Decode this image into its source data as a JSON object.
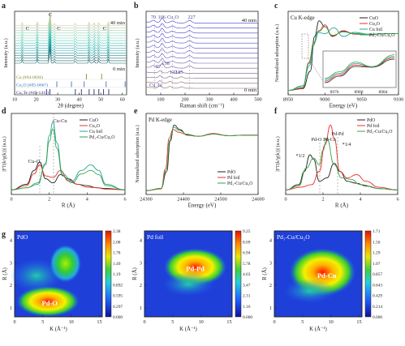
{
  "panel_letters": [
    "a",
    "b",
    "c",
    "d",
    "e",
    "f",
    "g"
  ],
  "colors": {
    "black": "#222222",
    "red": "#e8302c",
    "green": "#3aa34a",
    "teal": "#2aa39a",
    "cu_olive": "#8a8a2a",
    "cu2o_blue": "#3d6fb6",
    "cu2te_navy": "#2a2a7a",
    "purple": "#6a3aa0"
  },
  "chart_data": [
    {
      "panel": "a",
      "type": "line",
      "xlabel": "2θ (degree)",
      "ylabel": "Intensity (a.u.)",
      "xticks": [
        10,
        20,
        30,
        40,
        50,
        60
      ],
      "xlim": [
        10,
        62
      ],
      "annotations": {
        "top_time": "40 min",
        "bottom_time": "0 min",
        "peak_marks": [
          "C",
          "C",
          "C",
          "C"
        ]
      },
      "references": [
        {
          "name": "Cu (#04-0836)",
          "color": "#8a8a2a",
          "peaks": [
            43.3,
            50.4
          ]
        },
        {
          "name": "Cu₂O (#05-0667)",
          "color": "#3d6fb6",
          "peaks": [
            29.6,
            36.4,
            42.3,
            52.5,
            61.3
          ]
        },
        {
          "name": "Cu₂Te (#49-1411)",
          "color": "#2a2a7a",
          "peaks": [
            24.8,
            26.4,
            38.2,
            41.0,
            44.6,
            46.9,
            49.1,
            51.3,
            53.7
          ]
        }
      ],
      "n_series": 16
    },
    {
      "panel": "b",
      "type": "line",
      "xlabel": "Raman shift (cm⁻¹)",
      "ylabel": "Intensity (a.u.)",
      "xticks": [
        100,
        200,
        300,
        400,
        500
      ],
      "xlim": [
        40,
        500
      ],
      "annotations": {
        "top_time": "40 min",
        "bottom_time": "0 min",
        "top_peaks": [
          "70",
          "106",
          "Cu₂O",
          "227"
        ],
        "bottom_peaks": [
          "97",
          "138",
          "147",
          "185"
        ],
        "bottom_label": "Cu₂Te"
      },
      "n_series": 14
    },
    {
      "panel": "c",
      "type": "line",
      "title": "Cu K-edge",
      "xlabel": "Energy (eV)",
      "ylabel": "Normalized adsorption (a.u.)",
      "xticks": [
        8950,
        9000,
        9050,
        9100
      ],
      "xlim": [
        8950,
        9100
      ],
      "inset_xticks": [
        8976,
        8980,
        8984
      ],
      "series": [
        {
          "name": "CuO",
          "color": "#222222",
          "x": [
            8950,
            8970,
            8980,
            8986,
            8992,
            9000,
            9010,
            9025,
            9040,
            9060,
            9080,
            9100
          ],
          "y": [
            0.02,
            0.05,
            0.35,
            0.95,
            1.22,
            1.12,
            0.96,
            1.04,
            1.0,
            0.98,
            1.0,
            1.0
          ]
        },
        {
          "name": "Cu₂O",
          "color": "#e8302c",
          "x": [
            8950,
            8970,
            8978,
            8985,
            8992,
            9000,
            9010,
            9025,
            9040,
            9060,
            9080,
            9100
          ],
          "y": [
            0.02,
            0.06,
            0.5,
            0.85,
            1.05,
            1.15,
            0.95,
            1.05,
            0.99,
            0.98,
            1.0,
            1.0
          ]
        },
        {
          "name": "Cu foil",
          "color": "#2aa39a",
          "x": [
            8950,
            8970,
            8979,
            8984,
            8990,
            9000,
            9012,
            9025,
            9040,
            9060,
            9080,
            9100
          ],
          "y": [
            0.02,
            0.1,
            0.45,
            0.78,
            1.02,
            1.0,
            1.1,
            0.95,
            1.02,
            0.99,
            1.0,
            1.0
          ]
        },
        {
          "name": "Pd₁-Cu/Cu₂O",
          "color": "#3aa34a",
          "x": [
            8950,
            8970,
            8978,
            8985,
            8992,
            9000,
            9010,
            9025,
            9040,
            9060,
            9080,
            9100
          ],
          "y": [
            0.02,
            0.08,
            0.48,
            0.83,
            1.04,
            1.12,
            0.97,
            1.03,
            1.0,
            0.98,
            1.0,
            1.0
          ]
        }
      ]
    },
    {
      "panel": "d",
      "type": "line",
      "xlabel": "R (Å)",
      "ylabel": "|FT(k²χ(k))| (a.u.)",
      "xticks": [
        0,
        2,
        4,
        6
      ],
      "xlim": [
        0,
        6
      ],
      "annotations": [
        "Cu-Cu",
        "Cu-O"
      ],
      "series": [
        {
          "name": "CuO",
          "color": "#222222",
          "x": [
            0,
            0.8,
            1.2,
            1.5,
            1.8,
            2.2,
            2.6,
            3.0,
            3.5,
            4.0,
            4.5,
            5.0,
            6.0
          ],
          "y": [
            0.02,
            0.1,
            0.3,
            0.42,
            0.18,
            0.12,
            0.24,
            0.18,
            0.1,
            0.08,
            0.05,
            0.04,
            0.02
          ]
        },
        {
          "name": "Cu₂O",
          "color": "#e8302c",
          "x": [
            0,
            0.8,
            1.2,
            1.5,
            1.8,
            2.2,
            2.6,
            3.0,
            3.5,
            4.0,
            4.5,
            5.0,
            6.0
          ],
          "y": [
            0.02,
            0.08,
            0.25,
            0.38,
            0.22,
            0.2,
            0.3,
            0.15,
            0.1,
            0.06,
            0.05,
            0.03,
            0.02
          ]
        },
        {
          "name": "Cu foil",
          "color": "#2aa39a",
          "x": [
            0,
            0.8,
            1.4,
            1.8,
            2.0,
            2.2,
            2.4,
            2.7,
            3.2,
            3.7,
            4.2,
            4.6,
            5.0,
            6.0
          ],
          "y": [
            0.02,
            0.05,
            0.1,
            0.4,
            0.8,
            1.0,
            0.7,
            0.25,
            0.15,
            0.3,
            0.38,
            0.3,
            0.1,
            0.02
          ]
        },
        {
          "name": "Pd₁-Cu/Cu₂O",
          "color": "#3aa34a",
          "x": [
            0,
            0.8,
            1.4,
            1.8,
            2.0,
            2.2,
            2.4,
            2.7,
            3.2,
            3.7,
            4.2,
            4.6,
            5.0,
            6.0
          ],
          "y": [
            0.02,
            0.05,
            0.12,
            0.38,
            0.72,
            0.9,
            0.62,
            0.22,
            0.12,
            0.25,
            0.3,
            0.24,
            0.08,
            0.02
          ]
        }
      ]
    },
    {
      "panel": "e",
      "type": "line",
      "title": "Pd K-edge",
      "xlabel": "Energy (eV)",
      "ylabel": "Normalized adsorption (a.u.)",
      "xticks": [
        24300,
        24400,
        24500,
        24600
      ],
      "xlim": [
        24300,
        24600
      ],
      "series": [
        {
          "name": "PdO",
          "color": "#222222",
          "x": [
            24300,
            24340,
            24355,
            24365,
            24375,
            24390,
            24410,
            24440,
            24480,
            24520,
            24560,
            24600
          ],
          "y": [
            0.01,
            0.05,
            0.35,
            0.9,
            1.18,
            1.1,
            1.0,
            0.98,
            1.02,
            0.99,
            1.0,
            1.0
          ]
        },
        {
          "name": "Pd foil",
          "color": "#e8302c",
          "x": [
            24300,
            24340,
            24352,
            24362,
            24372,
            24388,
            24405,
            24440,
            24480,
            24520,
            24560,
            24600
          ],
          "y": [
            0.01,
            0.04,
            0.4,
            0.95,
            1.1,
            1.05,
            1.02,
            0.98,
            1.03,
            0.99,
            1.0,
            1.0
          ]
        },
        {
          "name": "Pd₁-Cu/Cu₂O",
          "color": "#3aa34a",
          "x": [
            24300,
            24340,
            24354,
            24364,
            24374,
            24390,
            24410,
            24440,
            24480,
            24520,
            24560,
            24600
          ],
          "y": [
            0.01,
            0.05,
            0.38,
            0.92,
            1.14,
            1.08,
            1.01,
            0.98,
            1.02,
            0.99,
            1.0,
            1.0
          ]
        }
      ]
    },
    {
      "panel": "f",
      "type": "line",
      "xlabel": "R (Å)",
      "ylabel": "|FT(k²χ(k))| (a.u.)",
      "xticks": [
        0,
        2,
        4,
        6
      ],
      "xlim": [
        0,
        6
      ],
      "annotations": [
        "Pd-Pd",
        "Pd-O",
        "Pd-Cu",
        "*1/4",
        "*1/2"
      ],
      "series": [
        {
          "name": "PdO",
          "color": "#222222",
          "x": [
            0,
            0.7,
            1.0,
            1.3,
            1.5,
            1.8,
            2.2,
            2.6,
            2.9,
            3.3,
            3.8,
            4.3,
            5.0,
            6.0
          ],
          "y": [
            0.02,
            0.1,
            0.3,
            0.55,
            0.48,
            0.15,
            0.2,
            0.42,
            0.3,
            0.15,
            0.12,
            0.08,
            0.04,
            0.02
          ]
        },
        {
          "name": "Pd foil",
          "color": "#e8302c",
          "x": [
            0,
            0.8,
            1.4,
            1.8,
            2.1,
            2.4,
            2.6,
            2.9,
            3.3,
            3.8,
            4.3,
            5.0,
            6.0
          ],
          "y": [
            0.02,
            0.06,
            0.1,
            0.3,
            0.7,
            1.0,
            0.8,
            0.3,
            0.2,
            0.25,
            0.15,
            0.06,
            0.02
          ]
        },
        {
          "name": "Pd₁-Cu/Cu₂O",
          "color": "#3aa34a",
          "x": [
            0,
            0.7,
            1.1,
            1.5,
            1.8,
            2.0,
            2.2,
            2.6,
            3.0,
            3.5,
            4.0,
            5.0,
            6.0
          ],
          "y": [
            0.02,
            0.08,
            0.35,
            0.5,
            0.4,
            0.62,
            0.8,
            0.4,
            0.2,
            0.18,
            0.1,
            0.04,
            0.02
          ]
        }
      ]
    },
    {
      "panel": "g1",
      "type": "heatmap",
      "title": "PdO",
      "xlabel": "K (Å⁻¹)",
      "ylabel": "R (Å)",
      "xticks": [
        0,
        5,
        10,
        15
      ],
      "yticks": [
        1,
        2,
        3,
        4
      ],
      "colorbar": [
        "0.000",
        "0.297",
        "0.595",
        "0.892",
        "1.19",
        "1.49",
        "1.78",
        "2.08",
        "2.38"
      ],
      "peak_label": "Pd-O"
    },
    {
      "panel": "g2",
      "type": "heatmap",
      "title": "Pd foil",
      "xlabel": "K (Å⁻¹)",
      "ylabel": "R (Å)",
      "xticks": [
        0,
        5,
        10,
        15
      ],
      "yticks": [
        1,
        2,
        3,
        4
      ],
      "colorbar": [
        "0.000",
        "1.16",
        "2.31",
        "3.47",
        "4.63",
        "5.78",
        "6.94",
        "8.09",
        "9.25"
      ],
      "peak_label": "Pd-Pd"
    },
    {
      "panel": "g3",
      "type": "heatmap",
      "title": "Pd₁-Cu/Cu₂O",
      "xlabel": "K (Å⁻¹)",
      "ylabel": "R (Å)",
      "xticks": [
        0,
        5,
        10,
        15
      ],
      "yticks": [
        1,
        2,
        3,
        4
      ],
      "colorbar": [
        "0.000",
        "0.214",
        "0.429",
        "0.643",
        "0.857",
        "1.07",
        "1.29",
        "1.50",
        "1.71"
      ],
      "peak_label": "Pd-Cu"
    }
  ]
}
